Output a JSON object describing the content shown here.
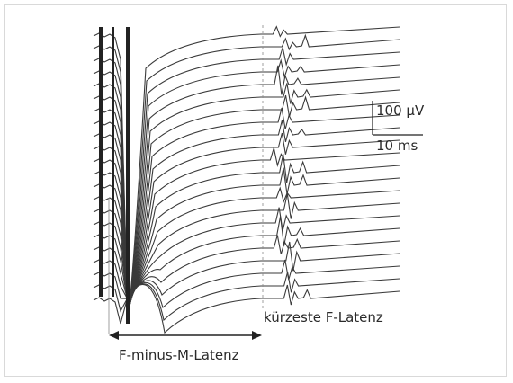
{
  "figure": {
    "scale_bar": {
      "amplitude_label": "100 µV",
      "time_label": "10 ms"
    },
    "labels": {
      "shortest_f_latency": "kürzeste F-Latenz",
      "f_minus_m_latency": "F-minus-M-Latenz"
    },
    "trace_count": 22,
    "trace_color": "#3a3a3a"
  }
}
